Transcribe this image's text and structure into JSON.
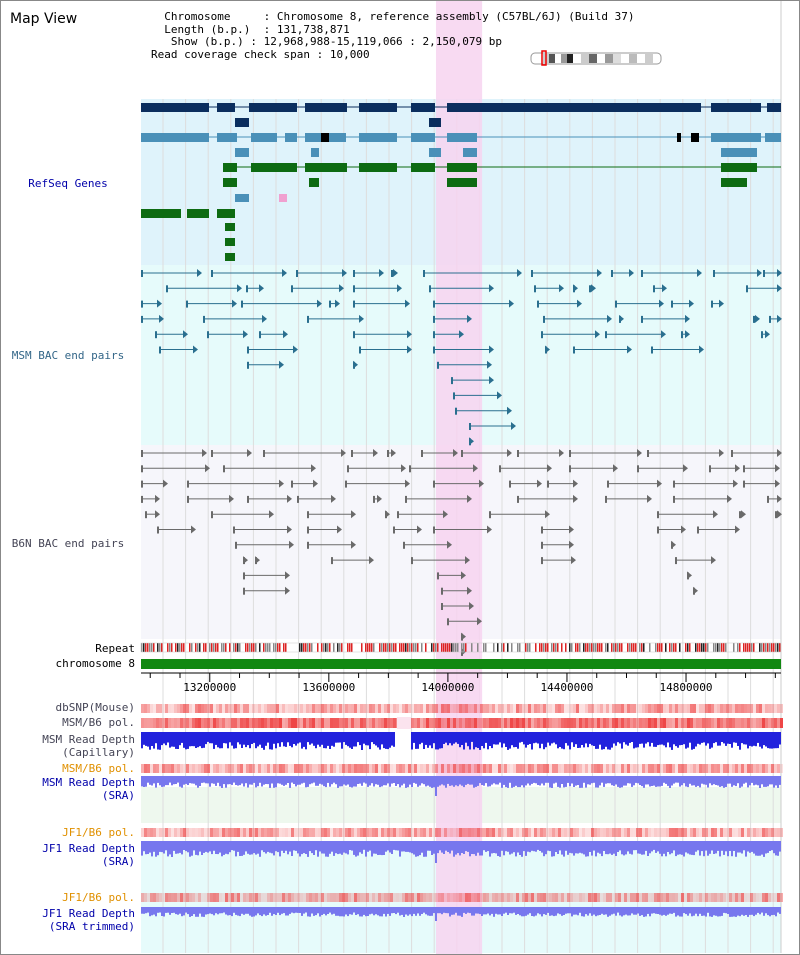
{
  "header": {
    "title": "Map View",
    "info": {
      "chromosome_key": "Chromosome",
      "chromosome_val": "Chromosome 8, reference assembly (C57BL/6J) (Build 37)",
      "length_key": "Length (b.p.)",
      "length_val": "131,738,871",
      "show_key": "Show (b.p.)",
      "show_val": "12,968,988-15,119,066 : 2,150,079 bp",
      "span_key": "Read coverage check span",
      "span_val": "10,000"
    }
  },
  "tracks": {
    "refseq": "RefSeq Genes",
    "msm_bac": "MSM BAC end pairs",
    "b6n_bac": "B6N BAC end pairs",
    "repeat": "Repeat",
    "chromosome": "chromosome 8",
    "dbsnp": "dbSNP(Mouse)",
    "msm_b6_pol_1": "MSM/B6 pol.",
    "msm_depth_cap_1": "MSM Read Depth",
    "msm_depth_cap_2": "(Capillary)",
    "msm_b6_pol_2": "MSM/B6 pol.",
    "msm_depth_sra_1": "MSM Read Depth",
    "msm_depth_sra_2": "(SRA)",
    "jf1_b6_pol_1": "JF1/B6 pol.",
    "jf1_depth_sra_1": "JF1 Read Depth",
    "jf1_depth_sra_2": "(SRA)",
    "jf1_b6_pol_2": "JF1/B6 pol.",
    "jf1_depth_trim_1": "JF1 Read Depth",
    "jf1_depth_trim_2": "(SRA trimmed)"
  },
  "axis": {
    "range_bp": [
      12968988,
      15119066
    ],
    "ticks": [
      13200000,
      13600000,
      14000000,
      14400000,
      14800000
    ],
    "tick_labels": [
      "13200000",
      "13600000",
      "14000000",
      "14400000",
      "14800000"
    ]
  },
  "highlight_range_bp": [
    13960000,
    14115000
  ],
  "colors": {
    "refseq_bg": "#dff3fb",
    "msm_bg": "#e6fbfb",
    "b6n_bg": "#f6f6fb",
    "highlight": "#f7d3f0",
    "gene_navy": "#0b2e5e",
    "gene_blue": "#4a90b8",
    "gene_green": "#0d6b12",
    "bac_teal": "#2a6f8f",
    "bac_gray": "#6a6a6a",
    "chromosome_green": "#118811",
    "snp_red": "#ee4444",
    "depth_blue": "#2222dd",
    "depth_light": "#7777ee"
  }
}
